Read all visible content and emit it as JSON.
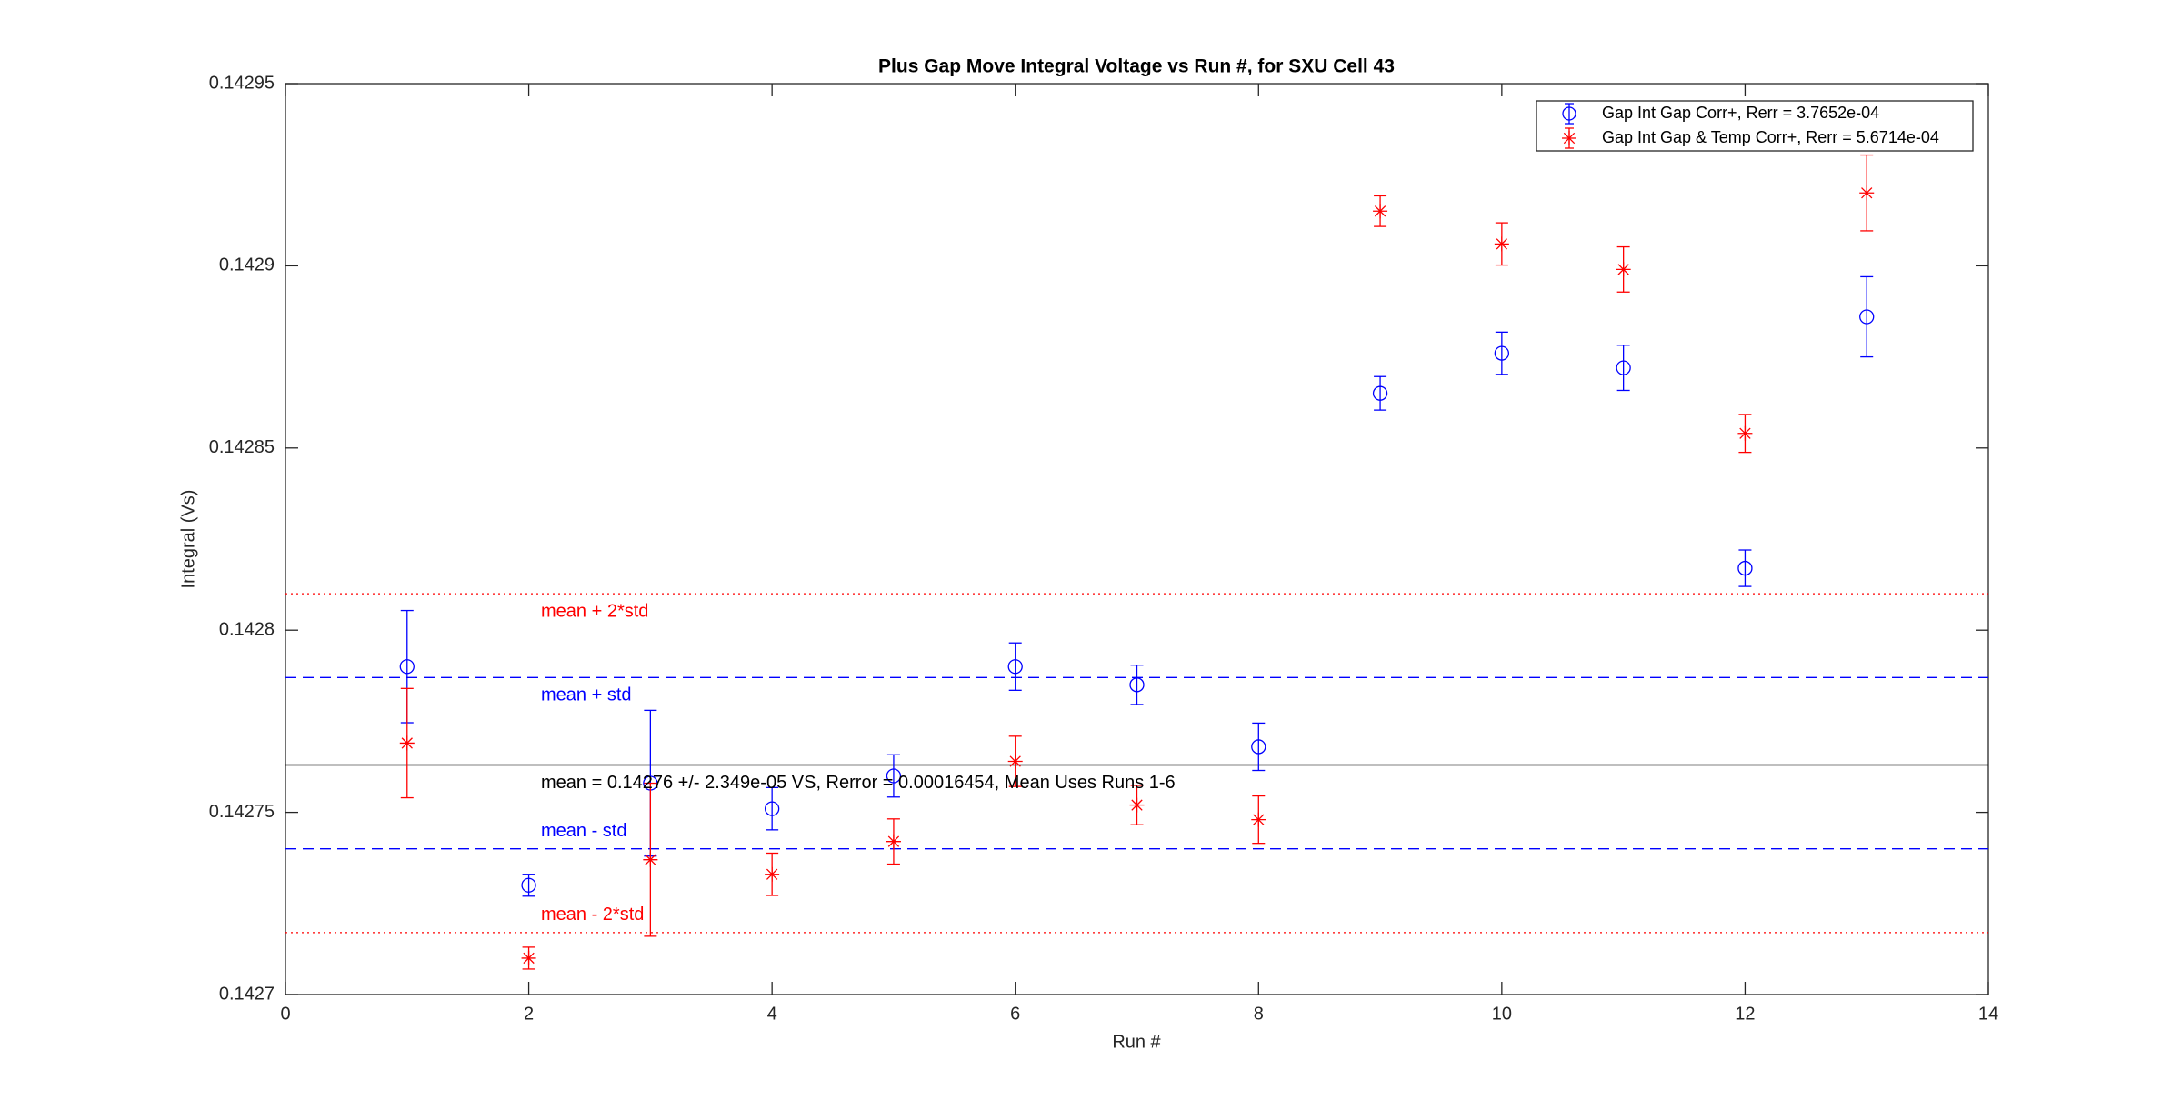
{
  "chart_data": {
    "type": "errorbar",
    "title": "Plus Gap Move Integral Voltage vs Run #, for SXU Cell 43",
    "x_label": "Run #",
    "y_label": "Integral (Vs)",
    "x": [
      1,
      2,
      3,
      4,
      5,
      6,
      7,
      8,
      9,
      10,
      11,
      12,
      13
    ],
    "series": [
      {
        "name": "Gap Int Gap Corr+, Rerr = 3.7652e-04",
        "color": "#0000ff",
        "marker": "o",
        "values": [
          0.14279,
          0.14273,
          0.142758,
          0.142751,
          0.14276,
          0.14279,
          0.142785,
          0.142768,
          0.142865,
          0.142876,
          0.142872,
          0.142817,
          0.142886
        ],
        "errors": [
          1.54e-05,
          3e-06,
          2e-05,
          5.8e-06,
          5.8e-06,
          6.5e-06,
          5.4e-06,
          6.5e-06,
          4.6e-06,
          5.8e-06,
          6.2e-06,
          5e-06,
          1.1e-05
        ]
      },
      {
        "name": "Gap Int Gap & Temp  Corr+, Rerr = 5.6714e-04",
        "color": "#ff0000",
        "marker": "*",
        "values": [
          0.142769,
          0.14271,
          0.142737,
          0.142733,
          0.142742,
          0.142764,
          0.142752,
          0.142748,
          0.142915,
          0.142906,
          0.142899,
          0.142854,
          0.14292
        ],
        "errors": [
          1.5e-05,
          3e-06,
          2.1e-05,
          5.8e-06,
          6.2e-06,
          6.9e-06,
          5.4e-06,
          6.5e-06,
          4.2e-06,
          5.8e-06,
          6.2e-06,
          5.2e-06,
          1.04e-05
        ]
      }
    ],
    "reference_lines": [
      {
        "label": "mean + 2*std",
        "value": 0.14281,
        "color": "#ff0000",
        "style": "dotted"
      },
      {
        "label": "mean + std",
        "value": 0.142787,
        "color": "#0000ff",
        "style": "dashed"
      },
      {
        "label": "mean = 0.14276 +/- 2.349e-05 VS, Rerror = 0.00016454, Mean Uses Runs 1-6",
        "value": 0.142763,
        "color": "#000000",
        "style": "solid"
      },
      {
        "label": "mean - std",
        "value": 0.14274,
        "color": "#0000ff",
        "style": "dashed"
      },
      {
        "label": "mean - 2*std",
        "value": 0.142717,
        "color": "#ff0000",
        "style": "dotted"
      }
    ],
    "xlim": [
      0,
      14
    ],
    "xticks": [
      0,
      2,
      4,
      6,
      8,
      10,
      12,
      14
    ],
    "ylim": [
      0.1427,
      0.14295
    ],
    "yticks": [
      0.1427,
      0.14275,
      0.1428,
      0.14285,
      0.1429,
      0.14295
    ],
    "legend": "upper right"
  }
}
